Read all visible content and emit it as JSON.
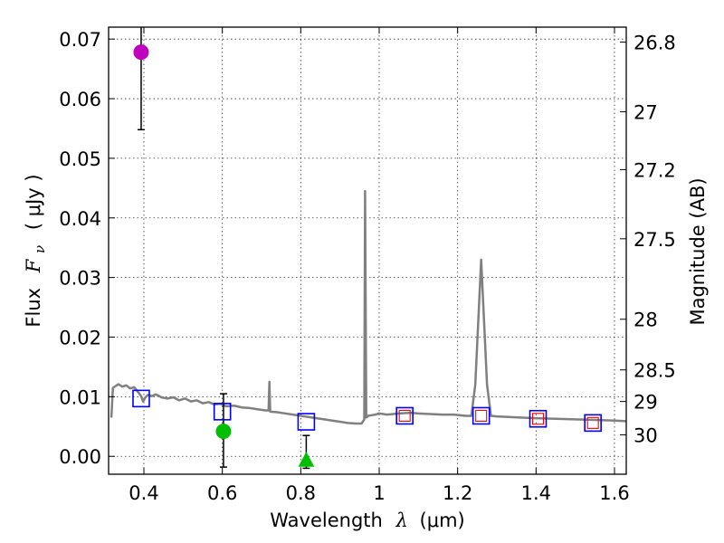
{
  "chart_data": {
    "type": "scatter",
    "xlabel_prefix": "Wavelength",
    "xlabel_symbol": "λ",
    "xlabel_unit": "(μm)",
    "ylabel_prefix": "Flux",
    "ylabel_symbol": "F",
    "ylabel_subscript": "ν",
    "ylabel_unit": "( μJy )",
    "y2label": "Magnitude (AB)",
    "xlim": [
      0.31,
      1.63
    ],
    "ylim": [
      -0.003,
      0.072
    ],
    "grid": true,
    "xticks": [
      {
        "value": 0.4,
        "label": "0.4"
      },
      {
        "value": 0.6,
        "label": "0.6"
      },
      {
        "value": 0.8,
        "label": "0.8"
      },
      {
        "value": 1.0,
        "label": "1"
      },
      {
        "value": 1.2,
        "label": "1.2"
      },
      {
        "value": 1.4,
        "label": "1.4"
      },
      {
        "value": 1.6,
        "label": "1.6"
      }
    ],
    "yticks": [
      {
        "value": 0.0,
        "label": "0.00"
      },
      {
        "value": 0.01,
        "label": "0.01"
      },
      {
        "value": 0.02,
        "label": "0.02"
      },
      {
        "value": 0.03,
        "label": "0.03"
      },
      {
        "value": 0.04,
        "label": "0.04"
      },
      {
        "value": 0.05,
        "label": "0.05"
      },
      {
        "value": 0.06,
        "label": "0.06"
      },
      {
        "value": 0.07,
        "label": "0.07"
      }
    ],
    "y2ticks": [
      {
        "label": "26.8",
        "flux": 0.0695
      },
      {
        "label": "27",
        "flux": 0.0578
      },
      {
        "label": "27.2",
        "flux": 0.0481
      },
      {
        "label": "27.5",
        "flux": 0.0365
      },
      {
        "label": "28",
        "flux": 0.023
      },
      {
        "label": "28.5",
        "flux": 0.0145
      },
      {
        "label": "29",
        "flux": 0.0092
      },
      {
        "label": "30",
        "flux": 0.0036
      }
    ],
    "model_spectrum": {
      "name": "model SED",
      "color": "#808080",
      "points": [
        [
          0.317,
          0.0065
        ],
        [
          0.321,
          0.0115
        ],
        [
          0.328,
          0.0118
        ],
        [
          0.335,
          0.0121
        ],
        [
          0.345,
          0.0117
        ],
        [
          0.355,
          0.0119
        ],
        [
          0.365,
          0.0114
        ],
        [
          0.375,
          0.0116
        ],
        [
          0.385,
          0.0108
        ],
        [
          0.393,
          0.0101
        ],
        [
          0.398,
          0.0092
        ],
        [
          0.403,
          0.0098
        ],
        [
          0.41,
          0.0103
        ],
        [
          0.42,
          0.0101
        ],
        [
          0.43,
          0.0104
        ],
        [
          0.445,
          0.0099
        ],
        [
          0.46,
          0.0097
        ],
        [
          0.475,
          0.0099
        ],
        [
          0.49,
          0.0094
        ],
        [
          0.505,
          0.0097
        ],
        [
          0.52,
          0.0092
        ],
        [
          0.535,
          0.0094
        ],
        [
          0.55,
          0.0089
        ],
        [
          0.565,
          0.0091
        ],
        [
          0.58,
          0.0087
        ],
        [
          0.595,
          0.0088
        ],
        [
          0.61,
          0.0084
        ],
        [
          0.63,
          0.0085
        ],
        [
          0.65,
          0.0082
        ],
        [
          0.67,
          0.0081
        ],
        [
          0.69,
          0.0079
        ],
        [
          0.71,
          0.0077
        ],
        [
          0.718,
          0.0077
        ],
        [
          0.72,
          0.0125
        ],
        [
          0.722,
          0.0075
        ],
        [
          0.74,
          0.0074
        ],
        [
          0.76,
          0.0072
        ],
        [
          0.78,
          0.007
        ],
        [
          0.8,
          0.0068
        ],
        [
          0.82,
          0.0066
        ],
        [
          0.84,
          0.0064
        ],
        [
          0.86,
          0.0062
        ],
        [
          0.88,
          0.006
        ],
        [
          0.9,
          0.0058
        ],
        [
          0.92,
          0.0056
        ],
        [
          0.94,
          0.0055
        ],
        [
          0.955,
          0.0055
        ],
        [
          0.962,
          0.0062
        ],
        [
          0.964,
          0.0445
        ],
        [
          0.967,
          0.0065
        ],
        [
          0.972,
          0.0068
        ],
        [
          0.99,
          0.007
        ],
        [
          1.0,
          0.0072
        ],
        [
          1.02,
          0.007
        ],
        [
          1.05,
          0.0072
        ],
        [
          1.08,
          0.0073
        ],
        [
          1.1,
          0.0072
        ],
        [
          1.13,
          0.0071
        ],
        [
          1.16,
          0.007
        ],
        [
          1.19,
          0.007
        ],
        [
          1.22,
          0.0068
        ],
        [
          1.235,
          0.0068
        ],
        [
          1.245,
          0.012
        ],
        [
          1.26,
          0.033
        ],
        [
          1.275,
          0.012
        ],
        [
          1.285,
          0.0068
        ],
        [
          1.3,
          0.0067
        ],
        [
          1.33,
          0.0066
        ],
        [
          1.36,
          0.0065
        ],
        [
          1.4,
          0.0064
        ],
        [
          1.45,
          0.0063
        ],
        [
          1.5,
          0.0062
        ],
        [
          1.55,
          0.0061
        ],
        [
          1.6,
          0.006
        ],
        [
          1.63,
          0.0059
        ]
      ]
    },
    "observed_points": [
      {
        "name": "obs-magenta-circle",
        "x": 0.393,
        "y": 0.0678,
        "err_low": 0.0548,
        "err_high": 0.072,
        "marker": "circle",
        "color": "#bf00bf"
      },
      {
        "name": "obs-green-circle",
        "x": 0.603,
        "y": 0.0042,
        "err_low": -0.0018,
        "err_high": 0.0105,
        "marker": "circle",
        "color": "#00bf00"
      },
      {
        "name": "obs-green-triangle",
        "x": 0.814,
        "y": -0.0006,
        "err_low": -0.002,
        "err_high": 0.0035,
        "marker": "triangle",
        "color": "#00bf00"
      }
    ],
    "model_photometry": {
      "name": "model bandpass fluxes",
      "color": "#0000ff",
      "x": [
        0.393,
        0.6,
        0.814,
        1.065,
        1.26,
        1.405,
        1.545
      ],
      "y": [
        0.0097,
        0.0075,
        0.0058,
        0.0068,
        0.0068,
        0.0063,
        0.0056
      ]
    },
    "nir_photometry": {
      "name": "NIR bandpass fluxes",
      "color": "#ff0000",
      "x": [
        1.065,
        1.26,
        1.405,
        1.545
      ],
      "y": [
        0.0068,
        0.0068,
        0.0063,
        0.0056
      ]
    }
  }
}
